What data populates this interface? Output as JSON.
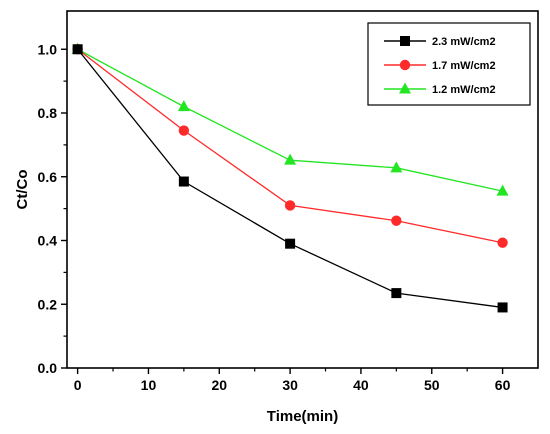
{
  "chart_data": {
    "type": "line",
    "xlabel": "Time(min)",
    "ylabel": "Ct/Co",
    "xlim": [
      -1.5,
      65
    ],
    "ylim": [
      0.0,
      1.12
    ],
    "xticks": [
      0,
      10,
      20,
      30,
      40,
      50,
      60
    ],
    "yticks": [
      0.0,
      0.2,
      0.4,
      0.6,
      0.8,
      1.0
    ],
    "xtick_labels": [
      "0",
      "10",
      "20",
      "30",
      "40",
      "50",
      "60"
    ],
    "ytick_labels": [
      "0.0",
      "0.2",
      "0.4",
      "0.6",
      "0.8",
      "1.0"
    ],
    "grid": false,
    "legend_position": "top-right",
    "series": [
      {
        "name": "2.3 mW/cm2",
        "color": "#000000",
        "marker": "square",
        "x": [
          0,
          15,
          30,
          45,
          60
        ],
        "y": [
          1.0,
          0.585,
          0.39,
          0.235,
          0.19
        ]
      },
      {
        "name": "1.7 mW/cm2",
        "color": "#ff2a2a",
        "marker": "circle",
        "x": [
          0,
          15,
          30,
          45,
          60
        ],
        "y": [
          1.0,
          0.745,
          0.51,
          0.462,
          0.393
        ]
      },
      {
        "name": "1.2 mW/cm2",
        "color": "#22e622",
        "marker": "triangle",
        "x": [
          0,
          15,
          30,
          45,
          60
        ],
        "y": [
          1.0,
          0.82,
          0.652,
          0.628,
          0.555
        ]
      }
    ]
  }
}
